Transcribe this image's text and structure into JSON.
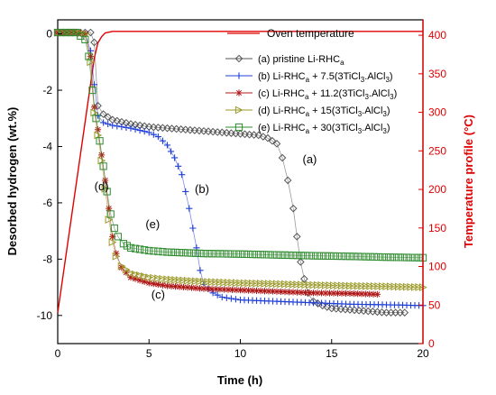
{
  "chart_data": {
    "type": "scatter",
    "xlabel": "Time (h)",
    "ylabel_left": "Desorbed hydrogen (wt.%)",
    "ylabel_right": "Temperature profile (°C)",
    "xlim": [
      0,
      20
    ],
    "ylim_left": [
      -11,
      0.5
    ],
    "ylim_right": [
      0,
      420
    ],
    "x_ticks": [
      "0",
      "5",
      "10",
      "15",
      "20"
    ],
    "y_ticks_left": [
      "0",
      "-2",
      "-4",
      "-6",
      "-8",
      "-10"
    ],
    "y_ticks_right": [
      "0",
      "50",
      "100",
      "150",
      "200",
      "250",
      "300",
      "350",
      "400"
    ],
    "legend_position": "top-right",
    "legend": {
      "oven": "Oven temperature",
      "a": "(a) pristine Li-RHC",
      "a_sub": "a",
      "b": "(b) Li-RHC",
      "b_sub": "a",
      "b_rest": " + 7.5(3TiCl",
      "b_sub2": "3",
      "b_end": ".AlCl",
      "b_sub3": "3",
      "b_close": ")",
      "c": "(c) Li-RHC",
      "c_sub": "a",
      "c_rest": " + 11.2(3TiCl",
      "c_sub2": "3",
      "c_end": ".AlCl",
      "c_sub3": "3",
      "c_close": ")",
      "d": "(d) Li-RHC",
      "d_sub": "a",
      "d_rest": " + 15(3TiCl",
      "d_sub2": "3",
      "d_end": ".AlCl",
      "d_sub3": "3",
      "d_close": ")",
      "e": "(e) Li-RHC",
      "e_sub": "a",
      "e_rest": " + 30(3TiCl",
      "e_sub2": "3",
      "e_end": ".AlCl",
      "e_sub3": "3",
      "e_close": ")"
    },
    "annotations": [
      {
        "text": "(a)",
        "x": 13.8,
        "y": -4.6
      },
      {
        "text": "(b)",
        "x": 7.9,
        "y": -5.65
      },
      {
        "text": "(c)",
        "x": 5.5,
        "y": -9.4
      },
      {
        "text": "(d)",
        "x": 2.4,
        "y": -5.55
      },
      {
        "text": "(e)",
        "x": 5.2,
        "y": -6.9
      }
    ],
    "series": [
      {
        "key": "oven",
        "axis": "right",
        "color": "#e00000",
        "marker": "line",
        "x": [
          0,
          2.0,
          2.2,
          2.4,
          2.6,
          3,
          20
        ],
        "y": [
          40,
          370,
          390,
          398,
          403,
          405,
          405
        ]
      },
      {
        "key": "a",
        "axis": "left",
        "color": "#555555",
        "marker": "diamond",
        "x": [
          0,
          0.5,
          1,
          1.5,
          1.8,
          2.0,
          2.2,
          2.5,
          3,
          4,
          5,
          6,
          7,
          8,
          9,
          10,
          11,
          11.5,
          12,
          12.3,
          12.6,
          12.9,
          13.1,
          13.3,
          13.5,
          13.7,
          14,
          14.5,
          15,
          16,
          17,
          18,
          19
        ],
        "y": [
          0.05,
          0.05,
          0.05,
          0.05,
          0.05,
          -0.3,
          -2.55,
          -2.85,
          -3.05,
          -3.2,
          -3.3,
          -3.35,
          -3.4,
          -3.45,
          -3.5,
          -3.55,
          -3.6,
          -3.7,
          -3.9,
          -4.4,
          -5.2,
          -6.2,
          -7.2,
          -8.1,
          -8.7,
          -9.2,
          -9.5,
          -9.65,
          -9.75,
          -9.8,
          -9.85,
          -9.9,
          -9.9
        ]
      },
      {
        "key": "b",
        "axis": "left",
        "color": "#1f3fd8",
        "marker": "plus",
        "x": [
          0,
          0.5,
          1,
          1.5,
          1.8,
          2.0,
          2.2,
          2.5,
          3,
          4,
          5,
          5.5,
          6,
          6.4,
          6.8,
          7.0,
          7.2,
          7.4,
          7.6,
          7.8,
          8.0,
          8.5,
          9,
          10,
          12,
          14,
          16,
          18,
          20
        ],
        "y": [
          0.05,
          0.05,
          0.05,
          0.0,
          -0.6,
          -1.8,
          -2.9,
          -3.15,
          -3.25,
          -3.35,
          -3.5,
          -3.65,
          -3.95,
          -4.4,
          -5.0,
          -5.6,
          -6.2,
          -6.9,
          -7.6,
          -8.4,
          -8.9,
          -9.2,
          -9.35,
          -9.45,
          -9.5,
          -9.55,
          -9.6,
          -9.62,
          -9.65
        ]
      },
      {
        "key": "c",
        "axis": "left",
        "color": "#b01818",
        "marker": "star",
        "x": [
          0,
          0.5,
          1,
          1.5,
          1.8,
          2.0,
          2.2,
          2.4,
          2.6,
          2.8,
          3.0,
          3.2,
          3.5,
          4,
          5,
          6,
          8,
          10,
          12,
          14,
          16,
          17.5
        ],
        "y": [
          0.05,
          0.05,
          0.05,
          0.0,
          -0.8,
          -2.6,
          -3.4,
          -4.3,
          -5.2,
          -6.2,
          -7.2,
          -7.8,
          -8.3,
          -8.65,
          -8.85,
          -8.95,
          -9.05,
          -9.1,
          -9.15,
          -9.2,
          -9.22,
          -9.25
        ]
      },
      {
        "key": "d",
        "axis": "left",
        "color": "#9c9a2a",
        "marker": "triangle",
        "x": [
          0,
          0.5,
          1,
          1.5,
          1.8,
          2.0,
          2.2,
          2.4,
          2.6,
          2.8,
          3.0,
          3.2,
          3.5,
          4,
          5,
          6,
          8,
          10,
          12,
          14,
          16,
          18,
          20
        ],
        "y": [
          0.05,
          0.05,
          0.05,
          0.0,
          -1.0,
          -2.8,
          -3.6,
          -4.5,
          -5.5,
          -6.6,
          -7.4,
          -7.9,
          -8.25,
          -8.5,
          -8.65,
          -8.72,
          -8.8,
          -8.85,
          -8.88,
          -8.92,
          -8.95,
          -8.97,
          -9.0
        ]
      },
      {
        "key": "e",
        "axis": "left",
        "color": "#2e8b2e",
        "marker": "square",
        "x": [
          0,
          0.5,
          1,
          1.5,
          1.7,
          1.9,
          2.1,
          2.3,
          2.5,
          2.7,
          2.9,
          3.1,
          3.3,
          3.6,
          4,
          5,
          6,
          8,
          10,
          12,
          14,
          16,
          18,
          20
        ],
        "y": [
          0.05,
          0.05,
          0.05,
          -0.2,
          -0.8,
          -2.0,
          -3.0,
          -3.8,
          -4.7,
          -5.6,
          -6.4,
          -6.9,
          -7.2,
          -7.45,
          -7.6,
          -7.7,
          -7.75,
          -7.8,
          -7.82,
          -7.85,
          -7.88,
          -7.9,
          -7.93,
          -7.95
        ]
      }
    ]
  }
}
